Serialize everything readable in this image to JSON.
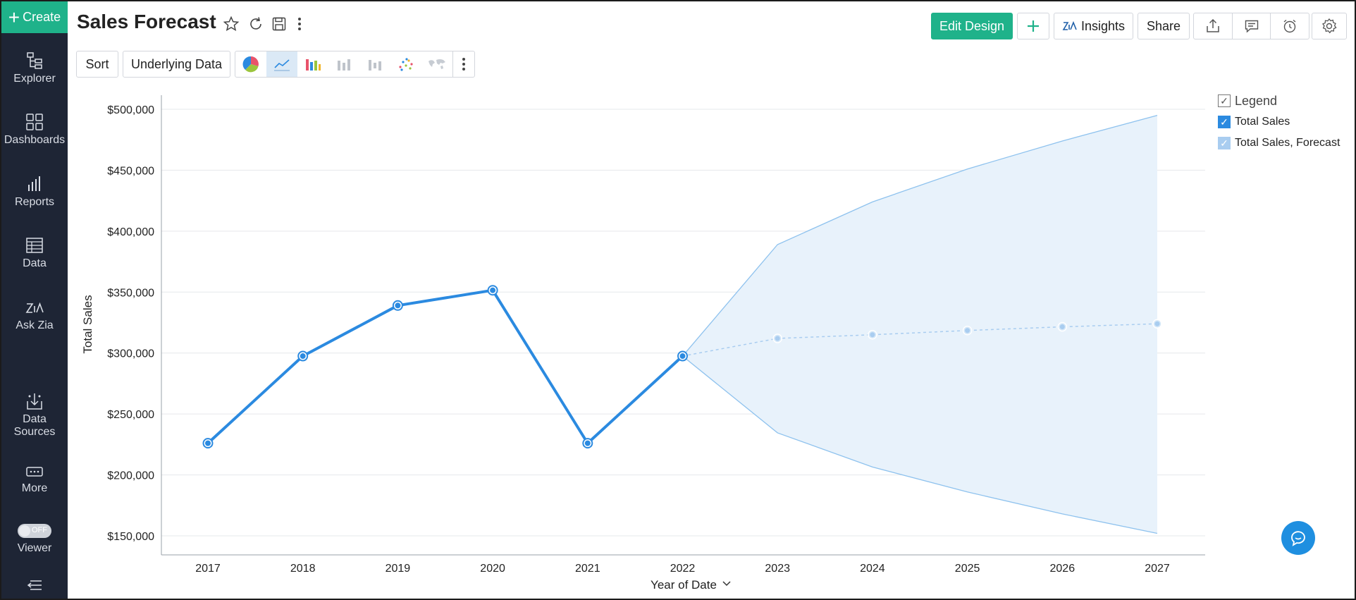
{
  "sidebar": {
    "create_label": "Create",
    "items": [
      {
        "label": "Explorer",
        "icon": "explorer-icon"
      },
      {
        "label": "Dashboards",
        "icon": "dashboards-icon"
      },
      {
        "label": "Reports",
        "icon": "reports-icon"
      },
      {
        "label": "Data",
        "icon": "data-table-icon"
      },
      {
        "label": "Ask Zia",
        "icon": "zia-icon"
      },
      {
        "label": "Data Sources",
        "icon": "data-sources-icon"
      },
      {
        "label": "More",
        "icon": "more-icon"
      },
      {
        "label": "Viewer",
        "icon": "viewer-toggle"
      }
    ],
    "viewer_toggle": "OFF"
  },
  "header": {
    "title": "Sales Forecast",
    "edit_design": "Edit Design",
    "insights": "Insights",
    "share": "Share"
  },
  "toolbar": {
    "sort": "Sort",
    "underlying_data": "Underlying Data"
  },
  "legend": {
    "title": "Legend",
    "items": [
      "Total Sales",
      "Total Sales, Forecast"
    ]
  },
  "chart_data": {
    "type": "line",
    "ylabel": "Total Sales",
    "xlabel": "Year of Date",
    "ylim": [
      150000,
      500000
    ],
    "y_ticks": [
      "$150,000",
      "$200,000",
      "$250,000",
      "$300,000",
      "$350,000",
      "$400,000",
      "$450,000",
      "$500,000"
    ],
    "y_tick_values": [
      150000,
      200000,
      250000,
      300000,
      350000,
      400000,
      450000,
      500000
    ],
    "categories": [
      "2017",
      "2018",
      "2019",
      "2020",
      "2021",
      "2022",
      "2023",
      "2024",
      "2025",
      "2026",
      "2027"
    ],
    "series": [
      {
        "name": "Total Sales",
        "x": [
          "2017",
          "2018",
          "2019",
          "2020",
          "2021",
          "2022"
        ],
        "values": [
          226000,
          297500,
          339000,
          351500,
          226000,
          297500
        ],
        "color": "#2b8ae0"
      },
      {
        "name": "Total Sales, Forecast",
        "x": [
          "2022",
          "2023",
          "2024",
          "2025",
          "2026",
          "2027"
        ],
        "values": [
          297500,
          312000,
          315000,
          318500,
          321500,
          324000
        ],
        "upper": [
          297500,
          389000,
          424000,
          451000,
          474000,
          495000
        ],
        "lower": [
          297500,
          234500,
          206500,
          186000,
          168000,
          152000
        ],
        "color": "#a9cdf0",
        "band_color": "#e8f2fb"
      }
    ],
    "grid": true,
    "legend_position": "top-right"
  }
}
